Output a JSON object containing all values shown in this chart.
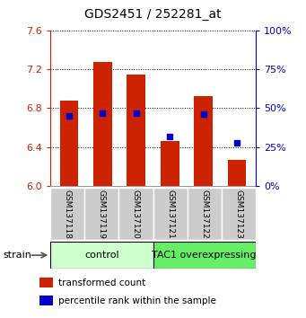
{
  "title": "GDS2451 / 252281_at",
  "samples": [
    "GSM137118",
    "GSM137119",
    "GSM137120",
    "GSM137121",
    "GSM137122",
    "GSM137123"
  ],
  "transformed_counts": [
    6.88,
    7.27,
    7.14,
    6.46,
    6.92,
    6.27
  ],
  "percentile_ranks": [
    45,
    47,
    47,
    32,
    46,
    28
  ],
  "ylim_left": [
    6.0,
    7.6
  ],
  "ylim_right": [
    0,
    100
  ],
  "yticks_left": [
    6.0,
    6.4,
    6.8,
    7.2,
    7.6
  ],
  "yticks_right": [
    0,
    25,
    50,
    75,
    100
  ],
  "groups": [
    {
      "label": "control",
      "indices": [
        0,
        1,
        2
      ],
      "color": "#ccffcc"
    },
    {
      "label": "TAC1 overexpressing",
      "indices": [
        3,
        4,
        5
      ],
      "color": "#66ee66"
    }
  ],
  "bar_color": "#cc2200",
  "dot_color": "#0000cc",
  "bar_bottom": 6.0,
  "bar_width": 0.55,
  "legend_items": [
    {
      "color": "#cc2200",
      "label": "transformed count"
    },
    {
      "color": "#0000cc",
      "label": "percentile rank within the sample"
    }
  ],
  "strain_label": "strain",
  "tick_label_color_left": "#cc2200",
  "tick_label_color_right": "#0000cc"
}
